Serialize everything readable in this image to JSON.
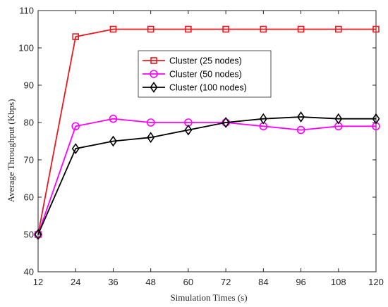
{
  "chart_data": {
    "type": "line",
    "title": "",
    "xlabel": "Simulation Times (s)",
    "ylabel": "Average Throughput (Kbps)",
    "x": [
      12,
      24,
      36,
      48,
      60,
      72,
      84,
      96,
      108,
      120
    ],
    "xlim": [
      12,
      120
    ],
    "ylim": [
      40,
      110
    ],
    "xticks": [
      12,
      24,
      36,
      48,
      60,
      72,
      84,
      96,
      108,
      120
    ],
    "yticks": [
      40,
      50,
      60,
      70,
      80,
      90,
      100,
      110
    ],
    "grid": false,
    "legend_position": "upper-center",
    "series": [
      {
        "name": "Cluster (25 nodes)",
        "color": "#e8191f",
        "marker": "square",
        "values": [
          50,
          103,
          105,
          105,
          105,
          105,
          105,
          105,
          105,
          105
        ]
      },
      {
        "name": "Cluster (50 nodes)",
        "color": "#ff00ff",
        "marker": "circle",
        "values": [
          50,
          79,
          81,
          80,
          80,
          80,
          79,
          78,
          79,
          79
        ]
      },
      {
        "name": "Cluster (100 nodes)",
        "color": "#000000",
        "marker": "diamond",
        "values": [
          50,
          73,
          75,
          76,
          78,
          80,
          81,
          81.5,
          81,
          81
        ]
      }
    ]
  }
}
